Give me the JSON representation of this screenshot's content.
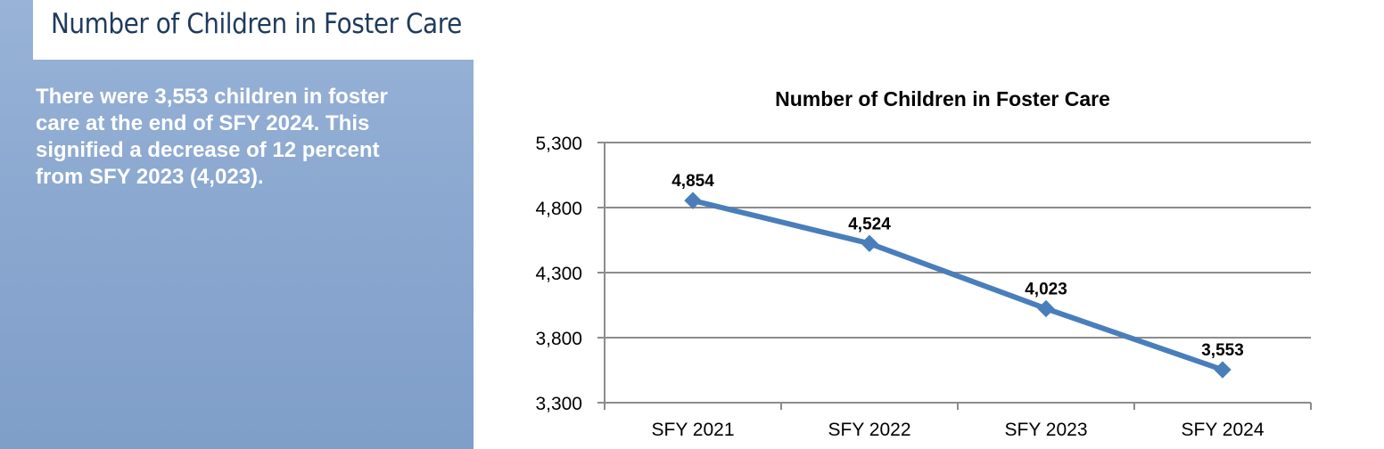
{
  "header": {
    "title": "Number of Children in Foster Care"
  },
  "summary": {
    "text": "There were 3,553 children in foster care at the end of SFY 2024. This signified a decrease of 12 percent from SFY 2023 (4,023)."
  },
  "colors": {
    "line": "#4a7ebb",
    "panel": "#8ba8d0",
    "title": "#1f3b5c",
    "grid": "#8c8c8c"
  },
  "chart_data": {
    "type": "line",
    "title": "Number of Children in Foster Care",
    "categories": [
      "SFY 2021",
      "SFY 2022",
      "SFY 2023",
      "SFY 2024"
    ],
    "series": [
      {
        "values": [
          4854,
          4524,
          4023,
          3553
        ]
      }
    ],
    "data_labels": [
      "4,854",
      "4,524",
      "4,023",
      "3,553"
    ],
    "y_ticks": [
      3300,
      3800,
      4300,
      4800,
      5300
    ],
    "y_tick_labels": [
      "3,300",
      "3,800",
      "4,300",
      "4,800",
      "5,300"
    ],
    "ylim": [
      3300,
      5300
    ],
    "xlabel": "",
    "ylabel": "",
    "grid": true,
    "legend": "none",
    "marker": "diamond"
  }
}
